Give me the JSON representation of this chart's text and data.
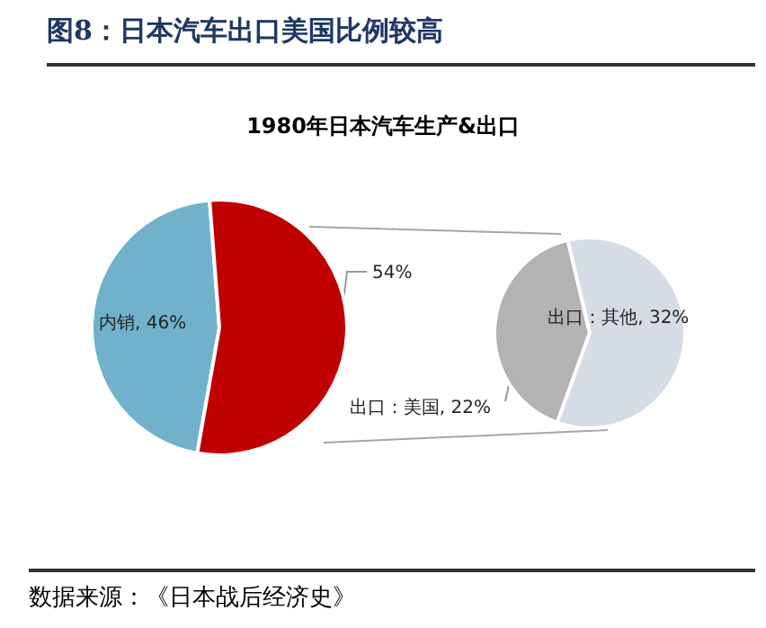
{
  "chart_data": [
    {
      "type": "pie",
      "title": "图8：日本汽车出口美国比例较高",
      "subtitle": "1980年日本汽车生产&出口",
      "categories": [
        "内销",
        null
      ],
      "values": [
        46,
        54
      ],
      "value_labels": [
        "46%",
        "54%"
      ],
      "colors": [
        "#72b1cc",
        "#c00000"
      ],
      "legend": false,
      "annotations": [
        "数据来源：《日本战后经济史》"
      ]
    },
    {
      "type": "pie",
      "categories": [
        "出口：美国",
        "出口：其他"
      ],
      "values": [
        22,
        32
      ],
      "value_labels": [
        "22%",
        "32%"
      ],
      "colors": [
        "#b3b3b3",
        "#d6dce5"
      ],
      "legend": false
    }
  ]
}
